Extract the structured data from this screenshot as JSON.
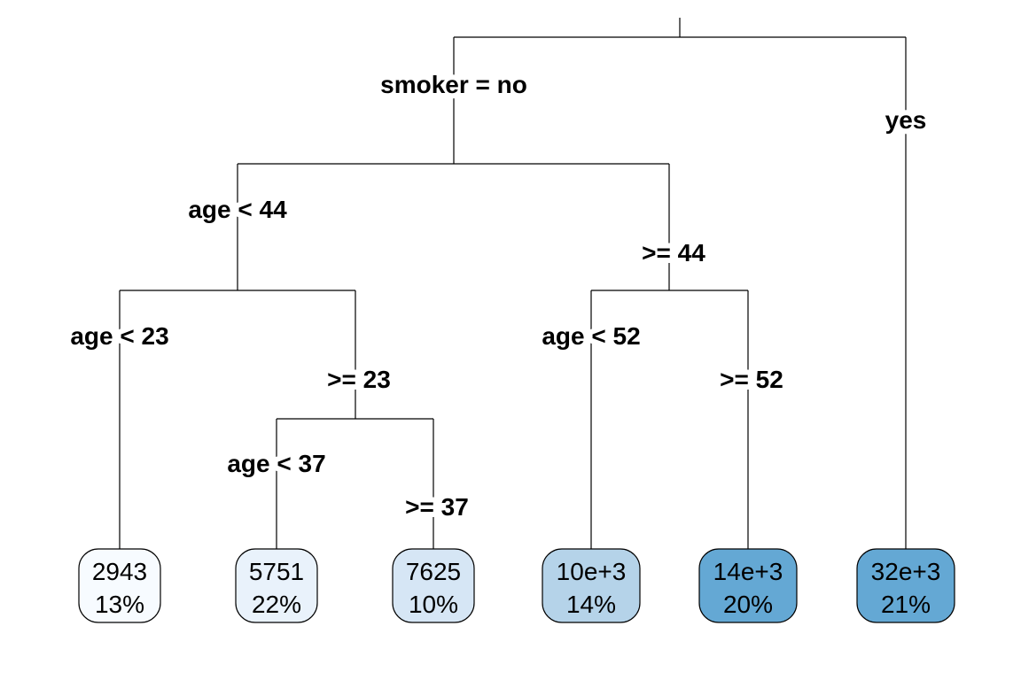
{
  "tree": {
    "root": {
      "split": "smoker = no",
      "alt": "yes"
    },
    "age44": {
      "split": "age < 44",
      "alt": ">= 44"
    },
    "age23": {
      "split": "age < 23",
      "alt": ">= 23"
    },
    "age52": {
      "split": "age < 52",
      "alt": ">= 52"
    },
    "age37": {
      "split": "age < 37",
      "alt": ">= 37"
    },
    "leaves": [
      {
        "value": "2943",
        "percent": "13%",
        "color": "#f7fbff"
      },
      {
        "value": "5751",
        "percent": "22%",
        "color": "#e9f2fb"
      },
      {
        "value": "7625",
        "percent": "10%",
        "color": "#d6e6f5"
      },
      {
        "value": "10e+3",
        "percent": "14%",
        "color": "#b5d3e9"
      },
      {
        "value": "14e+3",
        "percent": "20%",
        "color": "#64a8d4"
      },
      {
        "value": "32e+3",
        "percent": "21%",
        "color": "#64a8d4"
      }
    ]
  }
}
